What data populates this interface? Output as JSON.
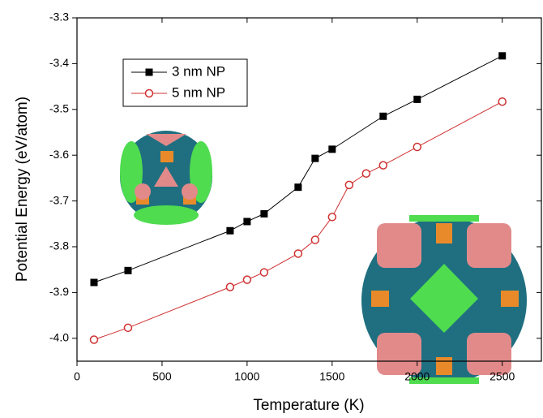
{
  "chart_data": {
    "type": "line",
    "x_label": "Temperature (K)",
    "y_label": "Potential Energy (eV/atom)",
    "xlim": [
      0,
      2730
    ],
    "ylim": [
      -4.05,
      -3.3
    ],
    "xticks": [
      0,
      500,
      1000,
      1500,
      2000,
      2500
    ],
    "yticks": [
      {
        "value": -4,
        "label": "-4.0"
      },
      -3.9,
      -3.8,
      -3.7,
      -3.6,
      -3.5,
      -3.4,
      -3.3
    ],
    "series": [
      {
        "name": "3 nm NP",
        "color": "#000000",
        "marker": "square",
        "x": [
          100,
          300,
          900,
          1000,
          1100,
          1300,
          1400,
          1500,
          1800,
          2000,
          2500
        ],
        "values": [
          -3.878,
          -3.852,
          -3.765,
          -3.745,
          -3.728,
          -3.67,
          -3.607,
          -3.587,
          -3.515,
          -3.478,
          -3.383
        ]
      },
      {
        "name": "5 nm NP",
        "color": "#d03030",
        "marker": "open-circle",
        "x": [
          100,
          300,
          900,
          1000,
          1100,
          1300,
          1400,
          1500,
          1600,
          1700,
          1800,
          2000,
          2500
        ],
        "values": [
          -4.003,
          -3.977,
          -3.888,
          -3.872,
          -3.856,
          -3.815,
          -3.785,
          -3.735,
          -3.665,
          -3.64,
          -3.622,
          -3.582,
          -3.483
        ]
      }
    ]
  }
}
